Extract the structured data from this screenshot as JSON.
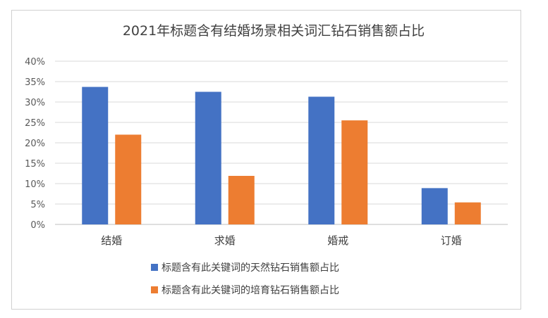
{
  "chart_data": {
    "type": "bar",
    "title": "2021年标题含有结婚场景相关词汇钻石销售额占比",
    "xlabel": "",
    "ylabel": "",
    "categories": [
      "结婚",
      "求婚",
      "婚戒",
      "订婚"
    ],
    "series": [
      {
        "name": "标题含有此关键词的天然钻石销售额占比",
        "color": "#4472C4",
        "values": [
          0.337,
          0.325,
          0.313,
          0.089
        ]
      },
      {
        "name": "标题含有此关键词的培育钻石销售额占比",
        "color": "#ED7D31",
        "values": [
          0.22,
          0.119,
          0.255,
          0.054
        ]
      }
    ],
    "ylim": [
      0,
      0.4
    ],
    "yticks": [
      0,
      0.05,
      0.1,
      0.15,
      0.2,
      0.25,
      0.3,
      0.35,
      0.4
    ],
    "ytick_labels": [
      "0%",
      "5%",
      "10%",
      "15%",
      "20%",
      "25%",
      "30%",
      "35%",
      "40%"
    ],
    "grid": true,
    "legend_position": "bottom"
  }
}
